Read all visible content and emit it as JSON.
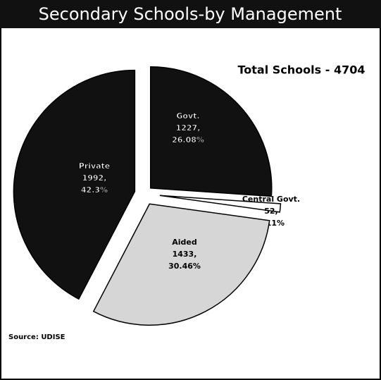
{
  "chart_data": {
    "type": "pie",
    "title": "Secondary Schools-by Management",
    "annotation": "Total Schools - 4704",
    "source": "Source: UDISE",
    "categories": [
      "Govt.",
      "Central Govt.",
      "Aided",
      "Private"
    ],
    "values": [
      1227,
      52,
      1433,
      1992
    ],
    "value_labels": [
      "1227,",
      "52,",
      "1433,",
      "1992,"
    ],
    "percent_labels": [
      "26.08%",
      "1.11%",
      "30.46%",
      "42.3%"
    ],
    "colors": [
      "#111111",
      "#ffffff",
      "#d6d6d6",
      "#111111"
    ]
  }
}
